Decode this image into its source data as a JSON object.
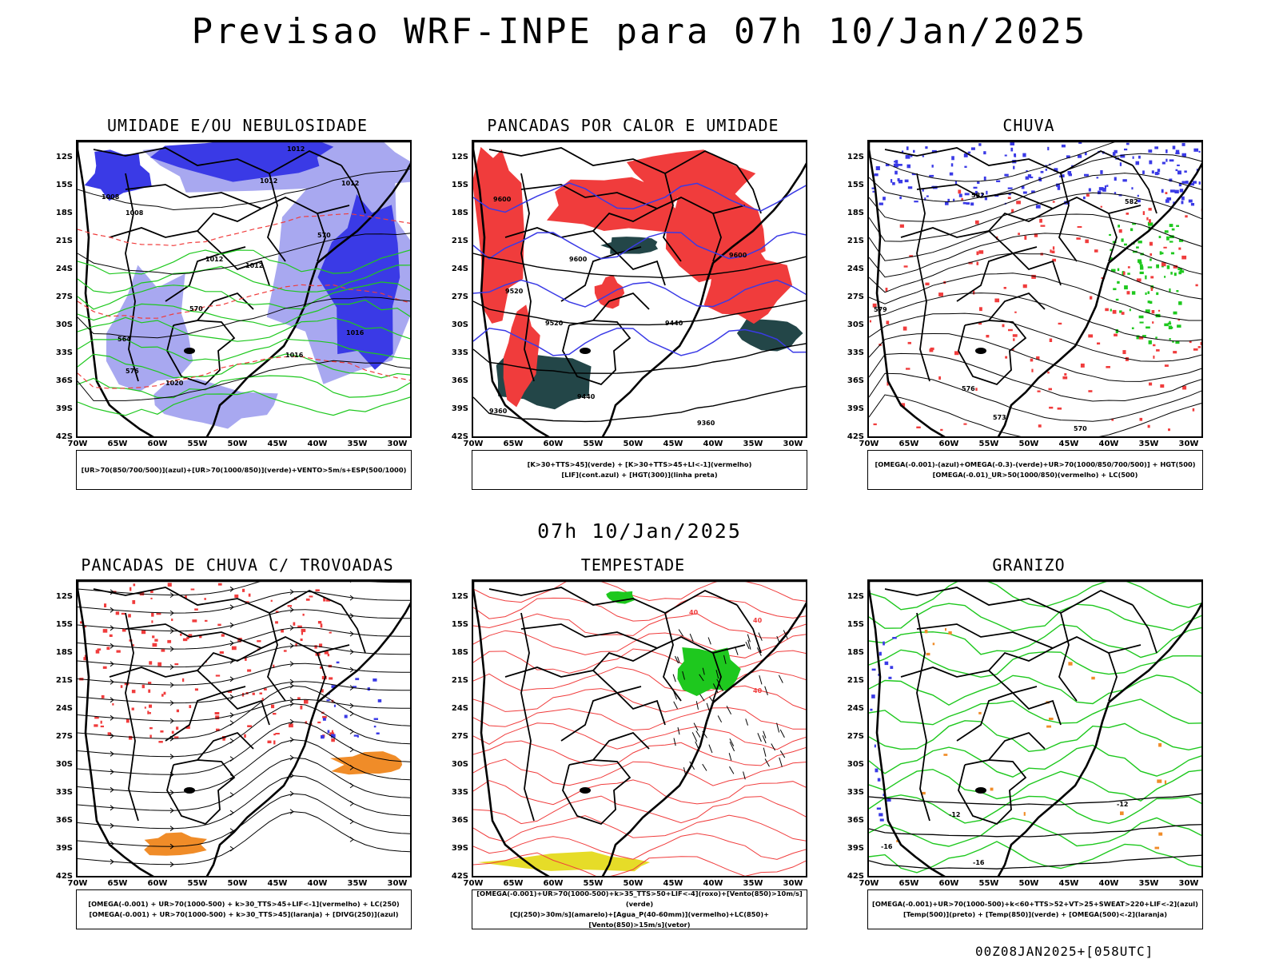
{
  "title": "Previsao WRF-INPE  para 07h 10/Jan/2025",
  "subtitle": "07h 10/Jan/2025",
  "stamp": "00Z08JAN2025+[058UTC]",
  "lat_labels": [
    "12S",
    "15S",
    "18S",
    "21S",
    "24S",
    "27S",
    "30S",
    "33S",
    "36S",
    "39S",
    "42S"
  ],
  "lon_labels": [
    "70W",
    "65W",
    "60W",
    "55W",
    "50W",
    "45W",
    "40W",
    "35W",
    "30W"
  ],
  "colors": {
    "blue": "#3a3ae6",
    "lightblue": "#a8a8f0",
    "green": "#1ec81e",
    "red": "#f03c3c",
    "orange": "#f08c28",
    "yellow": "#e6dc28",
    "darkteal": "#234648",
    "contour": "#000000"
  },
  "panels": [
    {
      "title": "UMIDADE E/OU NEBULOSIDADE",
      "legend": [
        "[UR>70(850/700/500)](azul)+[UR>70(1000/850)](verde)+VENTO>5m/s+ESP(500/1000)"
      ],
      "contour_labels": [
        "1012",
        "1012",
        "1012",
        "1008",
        "1008",
        "1012",
        "1012",
        "1016",
        "1016",
        "1020",
        "570",
        "570",
        "576",
        "564"
      ]
    },
    {
      "title": "PANCADAS POR CALOR E UMIDADE",
      "legend": [
        "[K>30+TTS>45](verde) + [K>30+TTS>45+LI<-1](vermelho)",
        "[LIF](cont.azul) + [HGT(300)](linha preta)"
      ],
      "contour_labels": [
        "9600",
        "9600",
        "9520",
        "9520",
        "9440",
        "9440",
        "9360",
        "9360",
        "9600"
      ]
    },
    {
      "title": "CHUVA",
      "legend": [
        "[OMEGA(-0.001)-(azul)+OMEGA(-0.3)-(verde)+UR>70(1000/850/700/500)] + HGT(500)",
        "[OMEGA(-0.01)_UR>50(1000/850)(vermelho) + LC(500)"
      ],
      "contour_labels": [
        "582",
        "582",
        "579",
        "576",
        "573",
        "570"
      ]
    },
    {
      "title": "PANCADAS DE CHUVA C/ TROVOADAS",
      "legend": [
        "[OMEGA(-0.001) + UR>70(1000-500) + k>30_TTS>45+LIF<-1](vermelho) + LC(250)",
        "[OMEGA(-0.001) + UR>70(1000-500) + k>30_TTS>45](laranja) + [DIVG(250)](azul)"
      ],
      "contour_labels": []
    },
    {
      "title": "TEMPESTADE",
      "legend": [
        "[OMEGA(-0.001)+UR>70(1000-500)+k>35_TTS>50+LIF<-4](roxo)+[Vento(850)>10m/s](verde)",
        "[CJ(250)>30m/s](amarelo)+[Agua_P(40-60mm)](vermelho)+LC(850)+[Vento(850)>15m/s](vetor)"
      ],
      "contour_labels": [
        "40",
        "40",
        "40"
      ]
    },
    {
      "title": "GRANIZO",
      "legend": [
        "[OMEGA(-0.001)+UR>70(1000-500)+k<60+TTS>52+VT>25+SWEAT>220+LIF<-2](azul)",
        "[Temp(500)](preto) + [Temp(850)](verde) + [OMEGA(500)<-2](laranja)"
      ],
      "contour_labels": [
        "-12",
        "-12",
        "-16",
        "-16"
      ]
    }
  ]
}
